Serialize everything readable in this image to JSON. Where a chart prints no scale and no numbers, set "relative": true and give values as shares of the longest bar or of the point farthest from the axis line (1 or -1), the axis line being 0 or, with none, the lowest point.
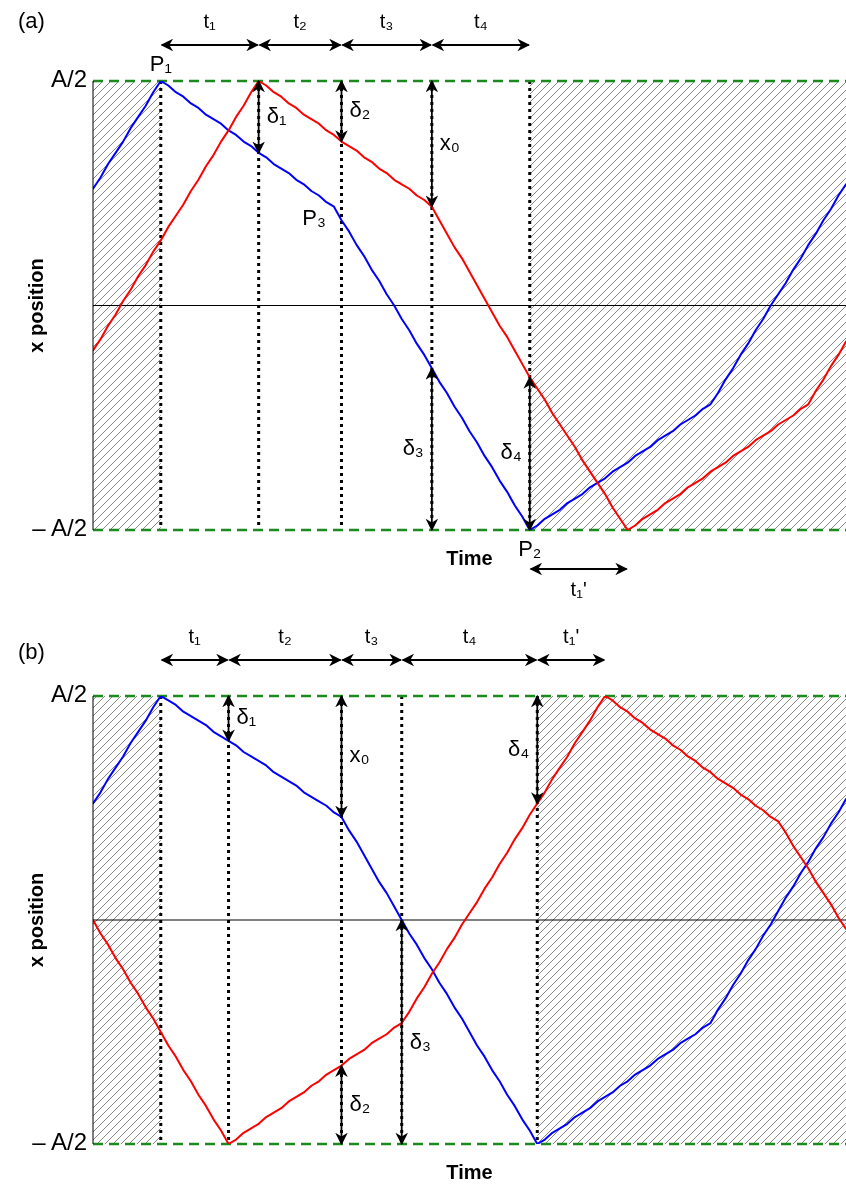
{
  "chart_data": [
    {
      "type": "line",
      "title": "(a)",
      "xlabel": "Time",
      "ylabel": "x position",
      "relative": true,
      "tick_labels": false,
      "grid": "x",
      "legend": false,
      "marker": "none",
      "line_style": "solid",
      "categories": [
        null,
        null,
        null,
        null,
        null,
        null,
        null,
        null,
        null,
        null,
        null,
        null,
        null,
        null,
        null,
        null,
        null,
        null,
        null,
        null,
        null,
        null,
        null,
        null,
        null,
        null,
        null,
        null,
        null,
        null,
        null,
        null,
        null,
        null,
        null,
        null,
        null,
        null,
        null,
        null,
        null,
        null,
        null,
        null,
        null,
        null,
        null,
        null,
        null,
        null,
        null,
        null,
        null,
        null,
        null,
        null,
        null,
        null,
        null,
        null,
        null,
        null,
        null,
        null,
        null,
        null,
        null,
        null,
        null,
        null,
        null,
        null,
        null,
        null,
        null,
        null,
        null,
        null,
        null,
        null,
        null,
        null,
        null,
        null,
        null,
        null,
        null,
        null,
        null,
        null,
        null,
        null,
        null,
        null,
        null,
        null,
        null,
        null,
        null,
        null,
        null
      ],
      "series": [
        {
          "color": "#0000ff",
          "values": [
            0.52,
            0.57,
            0.63,
            0.68,
            0.73,
            0.79,
            0.84,
            0.89,
            0.95,
            1,
            0.98,
            0.95,
            0.93,
            0.9,
            0.88,
            0.85,
            0.83,
            0.81,
            0.78,
            0.76,
            0.73,
            0.71,
            0.68,
            0.66,
            0.63,
            0.61,
            0.59,
            0.56,
            0.54,
            0.51,
            0.49,
            0.46,
            0.44,
            0.38,
            0.33,
            0.27,
            0.22,
            0.16,
            0.11,
            0.05,
            0,
            -0.06,
            -0.11,
            -0.17,
            -0.22,
            -0.28,
            -0.34,
            -0.39,
            -0.45,
            -0.5,
            -0.56,
            -0.61,
            -0.67,
            -0.72,
            -0.78,
            -0.83,
            -0.89,
            -0.94,
            -1,
            -0.98,
            -0.95,
            -0.93,
            -0.91,
            -0.88,
            -0.86,
            -0.84,
            -0.81,
            -0.79,
            -0.77,
            -0.74,
            -0.72,
            -0.7,
            -0.67,
            -0.65,
            -0.63,
            -0.6,
            -0.58,
            -0.56,
            -0.53,
            -0.51,
            -0.49,
            -0.46,
            -0.44,
            -0.39,
            -0.33,
            -0.28,
            -0.22,
            -0.17,
            -0.11,
            -0.06,
            0,
            0.05,
            0.1,
            0.16,
            0.21,
            0.27,
            0.32,
            0.38,
            0.43,
            0.49,
            0.54
          ]
        },
        {
          "color": "#ff0000",
          "values": [
            -0.2,
            -0.15,
            -0.09,
            -0.04,
            0.02,
            0.07,
            0.13,
            0.18,
            0.24,
            0.29,
            0.35,
            0.4,
            0.45,
            0.51,
            0.56,
            0.62,
            0.67,
            0.73,
            0.78,
            0.84,
            0.89,
            0.95,
            1,
            0.98,
            0.95,
            0.93,
            0.9,
            0.88,
            0.85,
            0.83,
            0.81,
            0.78,
            0.76,
            0.73,
            0.71,
            0.69,
            0.66,
            0.64,
            0.61,
            0.59,
            0.56,
            0.54,
            0.52,
            0.49,
            0.47,
            0.44,
            0.38,
            0.32,
            0.26,
            0.21,
            0.15,
            0.09,
            0.03,
            -0.03,
            -0.09,
            -0.14,
            -0.2,
            -0.26,
            -0.32,
            -0.37,
            -0.42,
            -0.48,
            -0.53,
            -0.58,
            -0.63,
            -0.69,
            -0.74,
            -0.79,
            -0.84,
            -0.9,
            -0.95,
            -1,
            -0.98,
            -0.95,
            -0.93,
            -0.91,
            -0.88,
            -0.86,
            -0.84,
            -0.81,
            -0.79,
            -0.77,
            -0.74,
            -0.72,
            -0.7,
            -0.67,
            -0.65,
            -0.63,
            -0.6,
            -0.58,
            -0.56,
            -0.53,
            -0.51,
            -0.49,
            -0.46,
            -0.44,
            -0.38,
            -0.33,
            -0.27,
            -0.22,
            -0.16
          ]
        }
      ],
      "ref_lines": [
        {
          "axis": "y",
          "value": 1,
          "label": "A/2",
          "color": "#1e8a1e",
          "line_style": "dashed"
        },
        {
          "axis": "y",
          "value": -1,
          "label": "– A/2",
          "color": "#1e8a1e",
          "line_style": "dashed"
        },
        {
          "axis": "y",
          "value": 0,
          "color": "#000000",
          "line_style": "solid"
        }
      ],
      "annotations": [
        "P₁",
        "P₂",
        "P₃",
        "t₁",
        "t₂",
        "t₃",
        "t₄",
        "t₁'",
        "δ₁",
        "δ₂",
        "x₀",
        "δ₃",
        "δ₄"
      ]
    },
    {
      "type": "line",
      "title": "(b)",
      "xlabel": "Time",
      "ylabel": "x position",
      "relative": true,
      "tick_labels": false,
      "grid": "x",
      "legend": false,
      "marker": "none",
      "line_style": "solid",
      "categories": [
        null,
        null,
        null,
        null,
        null,
        null,
        null,
        null,
        null,
        null,
        null,
        null,
        null,
        null,
        null,
        null,
        null,
        null,
        null,
        null,
        null,
        null,
        null,
        null,
        null,
        null,
        null,
        null,
        null,
        null,
        null,
        null,
        null,
        null,
        null,
        null,
        null,
        null,
        null,
        null,
        null,
        null,
        null,
        null,
        null,
        null,
        null,
        null,
        null,
        null,
        null,
        null,
        null,
        null,
        null,
        null,
        null,
        null,
        null,
        null,
        null,
        null,
        null,
        null,
        null,
        null,
        null,
        null,
        null,
        null,
        null,
        null,
        null,
        null,
        null,
        null,
        null,
        null,
        null,
        null,
        null,
        null,
        null,
        null,
        null,
        null,
        null,
        null,
        null,
        null,
        null,
        null,
        null,
        null,
        null,
        null,
        null,
        null,
        null,
        null,
        null
      ],
      "series": [
        {
          "color": "#0000ff",
          "values": [
            0.52,
            0.57,
            0.63,
            0.68,
            0.73,
            0.79,
            0.84,
            0.89,
            0.95,
            1,
            0.98,
            0.96,
            0.93,
            0.91,
            0.89,
            0.87,
            0.84,
            0.82,
            0.8,
            0.78,
            0.75,
            0.73,
            0.71,
            0.69,
            0.66,
            0.64,
            0.62,
            0.6,
            0.57,
            0.55,
            0.53,
            0.51,
            0.48,
            0.46,
            0.4,
            0.35,
            0.29,
            0.23,
            0.17,
            0.12,
            0.06,
            0,
            -0.06,
            -0.11,
            -0.17,
            -0.22,
            -0.28,
            -0.33,
            -0.39,
            -0.44,
            -0.5,
            -0.56,
            -0.61,
            -0.67,
            -0.72,
            -0.78,
            -0.83,
            -0.89,
            -0.94,
            -1,
            -0.98,
            -0.95,
            -0.93,
            -0.91,
            -0.88,
            -0.86,
            -0.84,
            -0.81,
            -0.79,
            -0.77,
            -0.74,
            -0.72,
            -0.69,
            -0.67,
            -0.65,
            -0.62,
            -0.6,
            -0.58,
            -0.55,
            -0.53,
            -0.51,
            -0.48,
            -0.46,
            -0.4,
            -0.35,
            -0.29,
            -0.24,
            -0.18,
            -0.13,
            -0.07,
            -0.02,
            0.04,
            0.1,
            0.15,
            0.21,
            0.26,
            0.32,
            0.37,
            0.43,
            0.48,
            0.54
          ]
        },
        {
          "color": "#ff0000",
          "values": [
            0,
            -0.06,
            -0.11,
            -0.17,
            -0.22,
            -0.28,
            -0.33,
            -0.39,
            -0.44,
            -0.5,
            -0.56,
            -0.61,
            -0.67,
            -0.72,
            -0.78,
            -0.83,
            -0.89,
            -0.94,
            -1,
            -0.98,
            -0.95,
            -0.93,
            -0.91,
            -0.88,
            -0.86,
            -0.84,
            -0.81,
            -0.79,
            -0.77,
            -0.74,
            -0.72,
            -0.69,
            -0.67,
            -0.65,
            -0.62,
            -0.6,
            -0.58,
            -0.55,
            -0.53,
            -0.51,
            -0.48,
            -0.46,
            -0.41,
            -0.35,
            -0.3,
            -0.24,
            -0.19,
            -0.13,
            -0.08,
            -0.02,
            0.03,
            0.08,
            0.14,
            0.19,
            0.25,
            0.3,
            0.36,
            0.41,
            0.47,
            0.52,
            0.57,
            0.63,
            0.68,
            0.73,
            0.79,
            0.84,
            0.89,
            0.95,
            1,
            0.98,
            0.95,
            0.93,
            0.9,
            0.88,
            0.85,
            0.83,
            0.81,
            0.78,
            0.76,
            0.73,
            0.71,
            0.68,
            0.66,
            0.63,
            0.61,
            0.59,
            0.56,
            0.54,
            0.51,
            0.49,
            0.46,
            0.44,
            0.39,
            0.33,
            0.28,
            0.23,
            0.17,
            0.12,
            0.07,
            0.01,
            -0.04
          ]
        }
      ],
      "ref_lines": [
        {
          "axis": "y",
          "value": 1,
          "label": "A/2",
          "color": "#1e8a1e",
          "line_style": "dashed"
        },
        {
          "axis": "y",
          "value": -1,
          "label": "– A/2",
          "color": "#1e8a1e",
          "line_style": "dashed"
        },
        {
          "axis": "y",
          "value": 0,
          "color": "#000000",
          "line_style": "solid"
        }
      ],
      "annotations": [
        "t₁",
        "t₂",
        "t₃",
        "t₄",
        "t₁'",
        "δ₁",
        "x₀",
        "δ₄",
        "δ₂",
        "δ₃"
      ]
    }
  ]
}
